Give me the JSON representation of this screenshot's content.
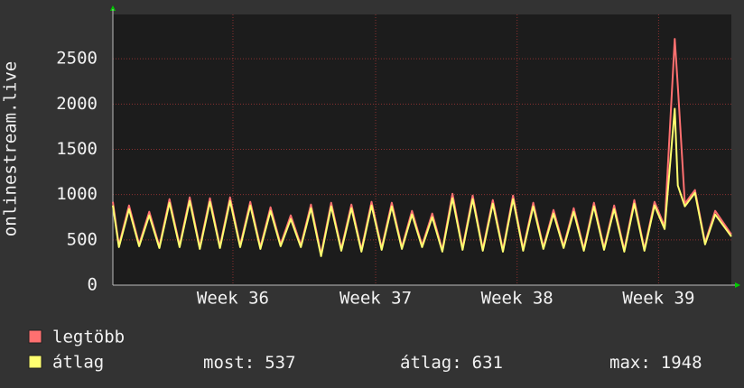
{
  "chart_data": {
    "type": "line",
    "y_label": "onlinestream.live",
    "xlim": [
      0,
      30.6
    ],
    "ylim": [
      0,
      2990
    ],
    "yticks": [
      0,
      500,
      1000,
      1500,
      2000,
      2500
    ],
    "xticks": [
      {
        "value": 5.94,
        "label": "Week 36"
      },
      {
        "value": 13.0,
        "label": "Week 37"
      },
      {
        "value": 20.0,
        "label": "Week 38"
      },
      {
        "value": 27.0,
        "label": "Week 39"
      }
    ],
    "grid": true,
    "x": [
      0,
      0.3,
      0.8,
      1.3,
      1.8,
      2.3,
      2.8,
      3.3,
      3.8,
      4.3,
      4.8,
      5.3,
      5.8,
      6.3,
      6.8,
      7.3,
      7.8,
      8.3,
      8.8,
      9.3,
      9.8,
      10.3,
      10.8,
      11.3,
      11.8,
      12.3,
      12.8,
      13.3,
      13.8,
      14.3,
      14.8,
      15.3,
      15.8,
      16.3,
      16.8,
      17.3,
      17.8,
      18.3,
      18.8,
      19.3,
      19.8,
      20.3,
      20.8,
      21.3,
      21.8,
      22.3,
      22.8,
      23.3,
      23.8,
      24.3,
      24.8,
      25.3,
      25.8,
      26.3,
      26.8,
      27.3,
      27.8,
      27.95,
      28.3,
      28.8,
      29.3,
      29.8,
      30.6
    ],
    "series": [
      {
        "name": "legtöbb",
        "color": "#ff7070",
        "values": [
          920,
          440,
          880,
          450,
          810,
          430,
          950,
          440,
          970,
          420,
          960,
          430,
          970,
          440,
          920,
          420,
          860,
          450,
          770,
          440,
          890,
          340,
          910,
          400,
          890,
          390,
          920,
          410,
          910,
          420,
          820,
          440,
          790,
          390,
          1010,
          410,
          990,
          400,
          940,
          390,
          990,
          400,
          910,
          420,
          830,
          430,
          850,
          400,
          910,
          410,
          880,
          390,
          940,
          400,
          920,
          650,
          2720,
          2200,
          900,
          1050,
          470,
          820,
          560
        ]
      },
      {
        "name": "átlag",
        "color": "#ffff70",
        "values": [
          880,
          420,
          840,
          430,
          770,
          410,
          910,
          420,
          930,
          400,
          920,
          410,
          930,
          420,
          880,
          400,
          820,
          430,
          730,
          420,
          850,
          320,
          870,
          380,
          850,
          370,
          880,
          390,
          870,
          400,
          780,
          420,
          750,
          370,
          960,
          390,
          950,
          380,
          900,
          370,
          950,
          380,
          870,
          400,
          790,
          410,
          810,
          380,
          870,
          390,
          840,
          370,
          900,
          380,
          880,
          620,
          1948,
          1100,
          870,
          1020,
          450,
          780,
          537
        ]
      }
    ],
    "stats": [
      {
        "label": "most:",
        "value": 537
      },
      {
        "label": "átlag:",
        "value": 631
      },
      {
        "label": "max:",
        "value": 1948
      }
    ]
  }
}
